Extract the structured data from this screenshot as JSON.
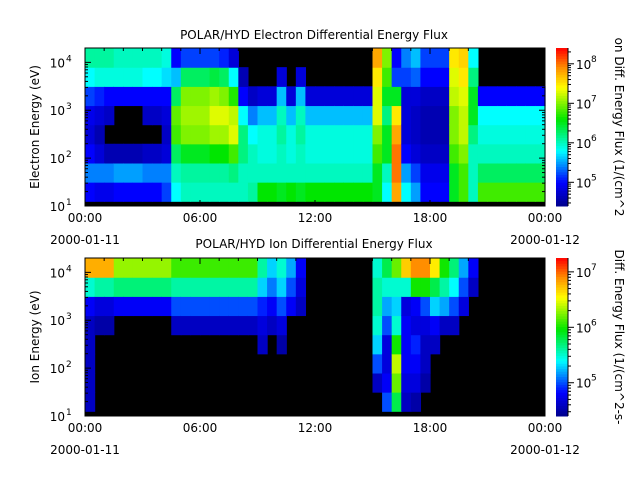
{
  "chart_data": [
    {
      "type": "heatmap",
      "title": "POLAR/HYD  Electron Differential Energy Flux",
      "ylabel": "Electron Energy (eV)",
      "colorbar_label": "on Diff. Energy Flux (1/(cm^2",
      "x_tick_labels": [
        "00:00",
        "06:00",
        "12:00",
        "18:00",
        "00:00"
      ],
      "x_date_labels": [
        "2000-01-11",
        "2000-01-12"
      ],
      "x_range_hours": [
        0,
        24
      ],
      "time_bin_hours": 0.5,
      "y_scale": "log",
      "ylim_log10": [
        1,
        4.3
      ],
      "y_tick_exponents": [
        1,
        2,
        3,
        4
      ],
      "energy_bin_centers_log10": [
        1.3,
        1.7,
        2.1,
        2.5,
        2.9,
        3.3,
        3.7,
        4.1
      ],
      "color_scale": "log",
      "color_range_log10": [
        4.4,
        8.4
      ],
      "colorbar_tick_exponents": [
        5,
        6,
        7,
        8
      ],
      "no_data_color": "#000000",
      "log10_flux_by_time": [
        [
          5.0,
          5.4,
          5.0,
          4.8,
          4.9,
          5.2,
          5.8,
          6.1
        ],
        [
          4.9,
          5.4,
          4.8,
          4.6,
          4.8,
          5.1,
          5.9,
          6.1
        ],
        [
          4.9,
          5.4,
          4.6,
          0,
          4.7,
          5.0,
          5.9,
          6.1
        ],
        [
          5.0,
          5.5,
          4.6,
          0,
          0,
          5.0,
          5.9,
          6.0
        ],
        [
          5.0,
          5.5,
          4.6,
          0,
          0,
          5.0,
          5.9,
          6.0
        ],
        [
          5.0,
          5.5,
          4.6,
          0,
          0,
          5.0,
          5.9,
          6.0
        ],
        [
          5.0,
          5.4,
          4.7,
          0,
          4.7,
          5.0,
          5.8,
          6.0
        ],
        [
          5.0,
          5.4,
          4.7,
          0,
          4.7,
          5.0,
          5.8,
          6.0
        ],
        [
          5.2,
          5.4,
          4.8,
          4.7,
          4.8,
          5.0,
          5.7,
          5.9
        ],
        [
          5.8,
          6.0,
          6.3,
          6.8,
          6.9,
          6.3,
          5.6,
          5.0
        ],
        [
          6.0,
          6.1,
          6.5,
          7.0,
          7.1,
          7.0,
          6.3,
          5.2
        ],
        [
          6.0,
          6.1,
          6.5,
          7.0,
          7.1,
          7.0,
          6.3,
          5.2
        ],
        [
          6.0,
          6.1,
          6.5,
          7.0,
          7.1,
          7.0,
          6.3,
          5.2
        ],
        [
          6.0,
          6.1,
          6.6,
          7.1,
          7.3,
          7.1,
          6.4,
          5.2
        ],
        [
          6.0,
          6.1,
          6.6,
          7.1,
          7.3,
          7.0,
          6.3,
          5.1
        ],
        [
          6.0,
          6.2,
          6.8,
          7.3,
          7.2,
          6.7,
          5.8,
          4.8
        ],
        [
          6.0,
          6.0,
          6.2,
          6.2,
          5.8,
          5.0,
          4.6,
          0
        ],
        [
          6.1,
          6.0,
          6.0,
          5.8,
          5.4,
          4.7,
          0,
          0
        ],
        [
          6.6,
          6.0,
          5.9,
          5.9,
          5.6,
          4.8,
          0,
          0
        ],
        [
          6.6,
          6.0,
          5.9,
          5.9,
          5.6,
          4.8,
          0,
          0
        ],
        [
          6.5,
          6.0,
          6.0,
          6.1,
          6.0,
          5.6,
          4.8,
          0
        ],
        [
          6.6,
          6.0,
          5.9,
          5.9,
          5.6,
          4.8,
          0,
          0
        ],
        [
          6.5,
          6.0,
          6.0,
          6.1,
          6.0,
          5.6,
          4.8,
          0
        ],
        [
          6.6,
          6.0,
          5.9,
          5.9,
          5.6,
          4.8,
          0,
          0
        ],
        [
          6.6,
          6.0,
          5.9,
          5.9,
          5.6,
          4.8,
          0,
          0
        ],
        [
          6.6,
          6.0,
          5.9,
          5.9,
          5.6,
          4.8,
          0,
          0
        ],
        [
          6.6,
          6.0,
          5.9,
          5.9,
          5.6,
          4.8,
          0,
          0
        ],
        [
          6.6,
          6.0,
          5.9,
          5.9,
          5.6,
          4.8,
          0,
          0
        ],
        [
          6.6,
          6.0,
          5.9,
          5.9,
          5.6,
          4.8,
          0,
          0
        ],
        [
          6.6,
          6.0,
          5.9,
          5.9,
          5.6,
          4.8,
          0,
          0
        ],
        [
          6.5,
          6.5,
          6.8,
          7.0,
          7.3,
          7.3,
          7.5,
          7.8
        ],
        [
          5.8,
          6.0,
          6.5,
          6.5,
          6.2,
          6.5,
          6.8,
          7.0
        ],
        [
          7.8,
          8.0,
          8.0,
          7.8,
          7.5,
          6.5,
          5.2,
          5.0
        ],
        [
          5.8,
          5.5,
          5.0,
          4.8,
          4.8,
          4.8,
          5.2,
          5.4
        ],
        [
          5.5,
          5.2,
          4.8,
          4.7,
          4.7,
          4.8,
          5.3,
          5.6
        ],
        [
          5.0,
          4.9,
          4.7,
          4.6,
          4.6,
          4.7,
          5.0,
          5.2
        ],
        [
          5.0,
          4.9,
          4.7,
          4.6,
          4.6,
          4.7,
          5.0,
          5.2
        ],
        [
          5.0,
          4.9,
          4.7,
          4.6,
          4.6,
          4.7,
          5.0,
          5.2
        ],
        [
          6.5,
          6.5,
          6.8,
          7.0,
          7.0,
          7.2,
          7.3,
          7.5
        ],
        [
          6.8,
          6.8,
          7.0,
          7.2,
          7.2,
          7.3,
          7.5,
          7.6
        ],
        [
          6.0,
          6.0,
          6.0,
          6.2,
          6.5,
          6.5,
          6.2,
          5.8
        ],
        [
          6.8,
          6.3,
          6.0,
          5.9,
          5.8,
          5.0,
          0,
          0
        ],
        [
          6.8,
          6.3,
          6.0,
          5.9,
          5.8,
          5.0,
          0,
          0
        ],
        [
          6.8,
          6.3,
          6.0,
          5.9,
          5.8,
          5.0,
          0,
          0
        ],
        [
          6.8,
          6.3,
          6.0,
          5.9,
          5.8,
          5.0,
          0,
          0
        ],
        [
          6.8,
          6.3,
          6.0,
          5.9,
          5.8,
          5.0,
          0,
          0
        ],
        [
          6.8,
          6.3,
          6.0,
          5.9,
          5.8,
          5.0,
          0,
          0
        ],
        [
          6.8,
          6.3,
          6.0,
          5.9,
          5.8,
          5.0,
          0,
          0
        ]
      ]
    },
    {
      "type": "heatmap",
      "title": "POLAR/HYD  Ion Differential Energy Flux",
      "ylabel": "Ion Energy (eV)",
      "colorbar_label": "Diff. Energy Flux (1/(cm^2-s-",
      "x_tick_labels": [
        "00:00",
        "06:00",
        "12:00",
        "18:00",
        "00:00"
      ],
      "x_date_labels": [
        "2000-01-11",
        "2000-01-12"
      ],
      "x_range_hours": [
        0,
        24
      ],
      "time_bin_hours": 0.5,
      "y_scale": "log",
      "ylim_log10": [
        1,
        4.3
      ],
      "y_tick_exponents": [
        1,
        2,
        3,
        4
      ],
      "energy_bin_centers_log10": [
        1.3,
        1.7,
        2.1,
        2.5,
        2.9,
        3.3,
        3.7,
        4.1
      ],
      "color_scale": "log",
      "color_range_log10": [
        4.4,
        7.25
      ],
      "colorbar_tick_exponents": [
        5,
        6,
        7
      ],
      "no_data_color": "#000000",
      "log10_flux_by_time": [
        [
          4.6,
          4.6,
          4.6,
          4.6,
          4.6,
          4.8,
          5.5,
          6.8
        ],
        [
          0,
          0,
          0,
          0,
          4.5,
          4.7,
          5.6,
          6.8
        ],
        [
          0,
          0,
          0,
          0,
          4.5,
          4.7,
          5.6,
          6.8
        ],
        [
          0,
          0,
          0,
          0,
          0,
          4.8,
          5.7,
          6.3
        ],
        [
          0,
          0,
          0,
          0,
          0,
          4.8,
          5.7,
          6.3
        ],
        [
          0,
          0,
          0,
          0,
          0,
          4.8,
          5.7,
          6.3
        ],
        [
          0,
          0,
          0,
          0,
          0,
          4.8,
          5.7,
          6.3
        ],
        [
          0,
          0,
          0,
          0,
          0,
          4.8,
          5.7,
          6.3
        ],
        [
          0,
          0,
          0,
          0,
          0,
          4.8,
          5.7,
          6.3
        ],
        [
          0,
          0,
          0,
          0,
          4.6,
          5.0,
          5.6,
          6.1
        ],
        [
          0,
          0,
          0,
          0,
          4.6,
          5.0,
          5.6,
          6.1
        ],
        [
          0,
          0,
          0,
          0,
          4.6,
          5.0,
          5.6,
          6.1
        ],
        [
          0,
          0,
          0,
          0,
          4.6,
          5.0,
          5.6,
          6.1
        ],
        [
          0,
          0,
          0,
          0,
          4.6,
          5.0,
          5.6,
          6.1
        ],
        [
          0,
          0,
          0,
          0,
          4.6,
          5.0,
          5.6,
          6.1
        ],
        [
          0,
          0,
          0,
          0,
          4.6,
          5.0,
          5.6,
          6.1
        ],
        [
          0,
          0,
          0,
          0,
          4.6,
          5.0,
          5.6,
          6.1
        ],
        [
          0,
          0,
          0,
          0,
          4.6,
          5.0,
          5.6,
          6.1
        ],
        [
          0,
          0,
          0,
          4.6,
          4.7,
          4.9,
          5.3,
          5.6
        ],
        [
          0,
          0,
          0,
          0,
          4.6,
          4.8,
          5.1,
          5.3
        ],
        [
          0,
          0,
          0,
          4.5,
          4.7,
          5.0,
          5.3,
          5.5
        ],
        [
          0,
          0,
          0,
          0,
          0,
          4.8,
          5.0,
          5.2
        ],
        [
          0,
          0,
          0,
          0,
          0,
          4.6,
          4.7,
          4.8
        ],
        [
          0,
          0,
          0,
          0,
          0,
          0,
          0,
          0
        ],
        [
          0,
          0,
          0,
          0,
          0,
          0,
          0,
          0
        ],
        [
          0,
          0,
          0,
          0,
          0,
          0,
          0,
          0
        ],
        [
          0,
          0,
          0,
          0,
          0,
          0,
          0,
          0
        ],
        [
          0,
          0,
          0,
          0,
          0,
          0,
          0,
          0
        ],
        [
          0,
          0,
          0,
          0,
          0,
          0,
          0,
          0
        ],
        [
          0,
          0,
          0,
          0,
          0,
          0,
          0,
          0
        ],
        [
          0,
          4.6,
          5.0,
          5.3,
          5.5,
          5.6,
          5.6,
          5.5
        ],
        [
          5.0,
          4.8,
          4.7,
          4.7,
          5.0,
          5.2,
          5.5,
          5.8
        ],
        [
          5.8,
          6.2,
          6.4,
          6.0,
          5.5,
          5.3,
          5.5,
          6.2
        ],
        [
          4.6,
          4.7,
          4.8,
          4.8,
          4.8,
          4.7,
          5.5,
          6.7
        ],
        [
          4.5,
          4.7,
          4.8,
          4.9,
          4.7,
          4.8,
          6.0,
          6.9
        ],
        [
          0,
          4.5,
          4.6,
          4.6,
          4.7,
          5.0,
          6.0,
          6.9
        ],
        [
          0,
          0,
          0,
          4.6,
          4.8,
          5.3,
          5.8,
          6.6
        ],
        [
          0,
          0,
          0,
          0,
          4.6,
          5.2,
          5.6,
          6.0
        ],
        [
          0,
          0,
          0,
          0,
          4.6,
          5.0,
          5.4,
          5.7
        ],
        [
          0,
          0,
          0,
          0,
          0,
          4.7,
          5.0,
          5.2
        ],
        [
          0,
          0,
          0,
          0,
          0,
          0,
          4.6,
          4.8
        ],
        [
          0,
          0,
          0,
          0,
          0,
          0,
          0,
          0
        ],
        [
          0,
          0,
          0,
          0,
          0,
          0,
          0,
          0
        ],
        [
          0,
          0,
          0,
          0,
          0,
          0,
          0,
          0
        ],
        [
          0,
          0,
          0,
          0,
          0,
          0,
          0,
          0
        ],
        [
          0,
          0,
          0,
          0,
          0,
          0,
          0,
          0
        ],
        [
          0,
          0,
          0,
          0,
          0,
          0,
          0,
          0
        ],
        [
          0,
          0,
          0,
          0,
          0,
          0,
          0,
          0
        ]
      ]
    }
  ]
}
